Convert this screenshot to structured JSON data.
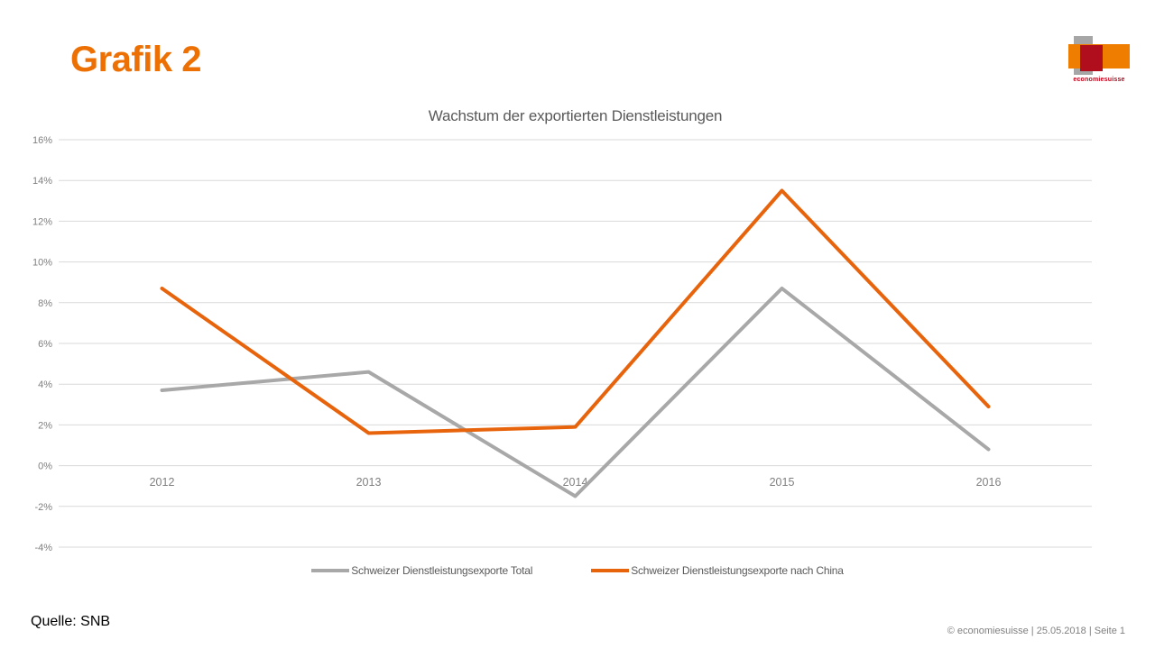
{
  "slide": {
    "title": "Grafik 2",
    "source": "Quelle: SNB",
    "footer": "© economiesuisse | 25.05.2018 | Seite 1",
    "logo": {
      "wordmark": "economiesuisse"
    }
  },
  "colors": {
    "accent_orange": "#ED7004",
    "line_orange": "#E8640C",
    "line_gray": "#A8A8A8",
    "grid": "#D9D9D9",
    "axis_text": "#7F7F7F",
    "title_text": "#595959",
    "logo_gray": "#A6A6A6",
    "logo_orange": "#EE7D00",
    "logo_red": "#B00E1C",
    "logo_wordmark_red": "#C00018"
  },
  "chart_data": {
    "type": "line",
    "title": "Wachstum der exportierten Dienstleistungen",
    "categories": [
      "2012",
      "2013",
      "2014",
      "2015",
      "2016"
    ],
    "series": [
      {
        "name": "Schweizer Dienstleistungsexporte Total",
        "color": "#A8A8A8",
        "values": [
          3.7,
          4.6,
          -1.5,
          8.7,
          0.8
        ]
      },
      {
        "name": "Schweizer Dienstleistungsexporte nach China",
        "color": "#E8640C",
        "values": [
          8.7,
          1.6,
          1.9,
          13.5,
          2.9
        ]
      }
    ],
    "ylim": [
      -4,
      16
    ],
    "ytick_step": 2,
    "ytick_suffix": "%",
    "grid": true,
    "legend_position": "bottom"
  }
}
